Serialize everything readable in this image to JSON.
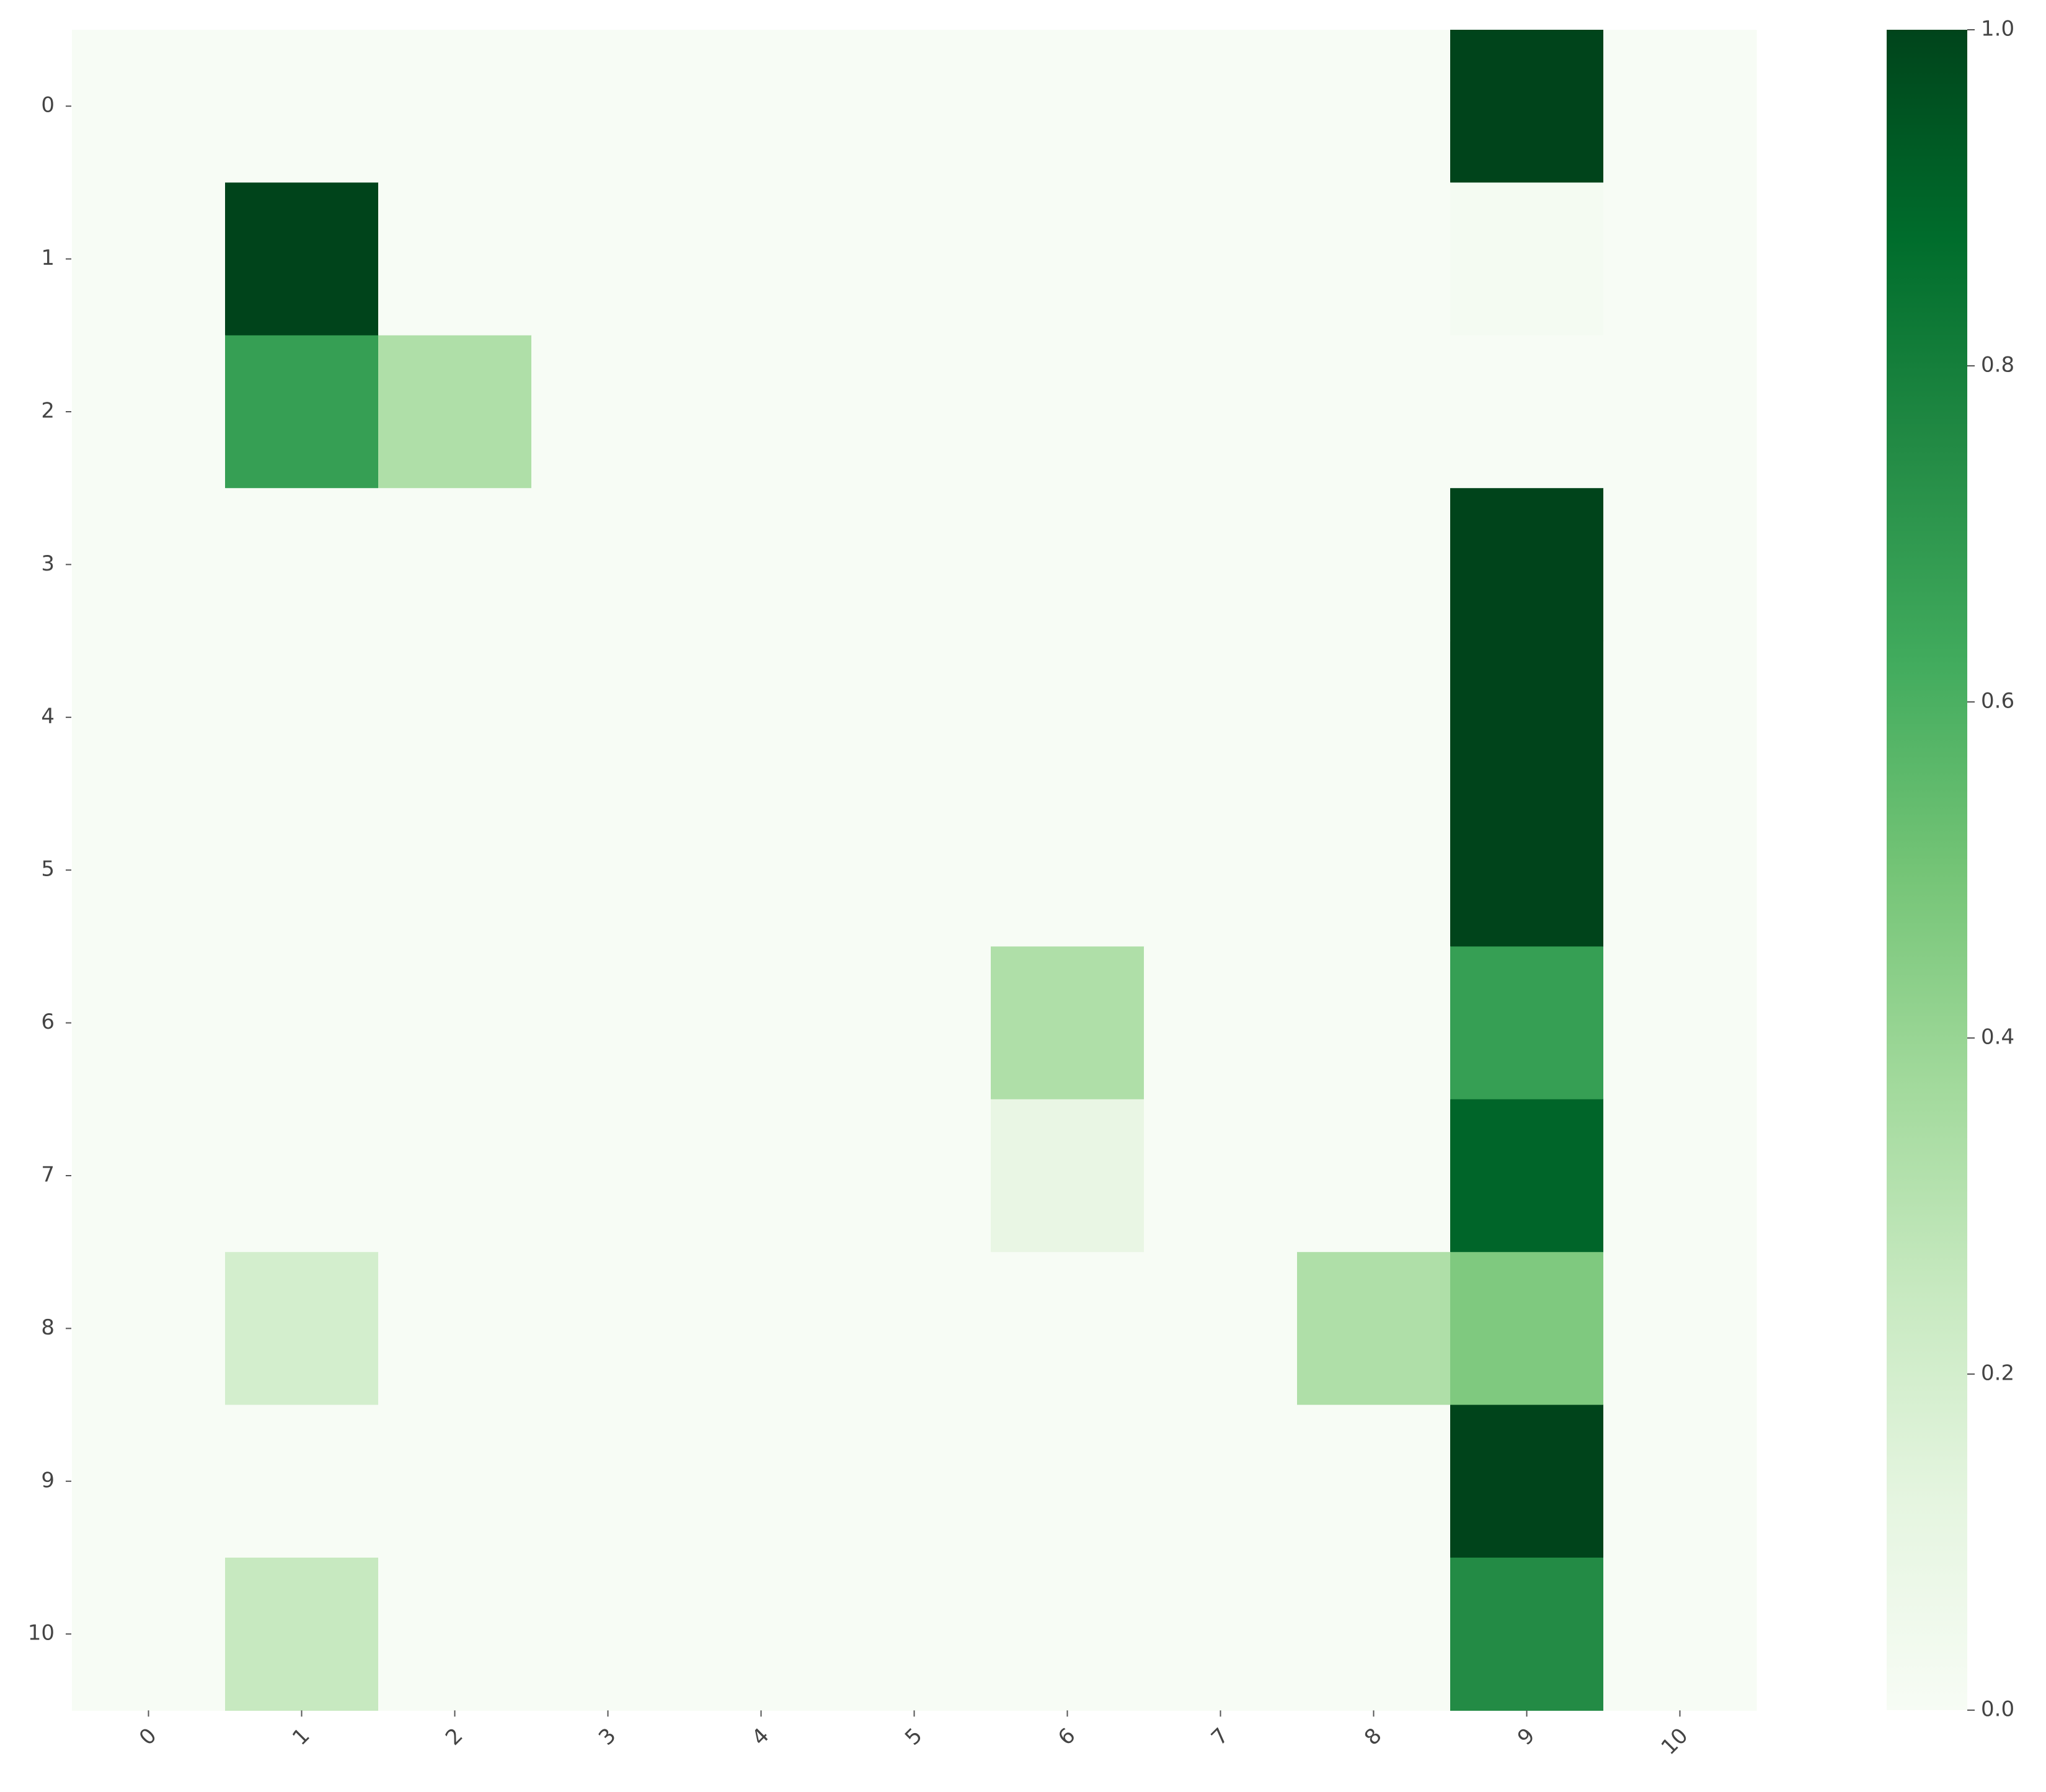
{
  "chart_data": {
    "type": "heatmap",
    "title": "",
    "xlabel": "",
    "ylabel": "",
    "x_categories": [
      "0",
      "1",
      "2",
      "3",
      "4",
      "5",
      "6",
      "7",
      "8",
      "9",
      "10"
    ],
    "y_categories": [
      "0",
      "1",
      "2",
      "3",
      "4",
      "5",
      "6",
      "7",
      "8",
      "9",
      "10"
    ],
    "values": [
      [
        0,
        0,
        0,
        0,
        0,
        0,
        0,
        0,
        0,
        1.0,
        0
      ],
      [
        0,
        1.0,
        0,
        0,
        0,
        0,
        0,
        0,
        0,
        0.02,
        0
      ],
      [
        0,
        0.67,
        0.33,
        0,
        0,
        0,
        0,
        0,
        0,
        0,
        0
      ],
      [
        0,
        0,
        0,
        0,
        0,
        0,
        0,
        0,
        0,
        1.0,
        0
      ],
      [
        0,
        0,
        0,
        0,
        0,
        0,
        0,
        0,
        0,
        1.0,
        0
      ],
      [
        0,
        0,
        0,
        0,
        0,
        0,
        0,
        0,
        0,
        1.0,
        0
      ],
      [
        0,
        0,
        0,
        0,
        0,
        0,
        0.33,
        0,
        0,
        0.67,
        0
      ],
      [
        0,
        0,
        0,
        0,
        0,
        0,
        0.1,
        0,
        0,
        0.9,
        0
      ],
      [
        0,
        0.2,
        0,
        0,
        0,
        0,
        0,
        0,
        0.33,
        0.47,
        0
      ],
      [
        0,
        0,
        0,
        0,
        0,
        0,
        0,
        0,
        0,
        1.0,
        0
      ],
      [
        0,
        0.25,
        0,
        0,
        0,
        0,
        0,
        0,
        0,
        0.75,
        0
      ]
    ],
    "colormap": "Greens",
    "vmin": 0.0,
    "vmax": 1.0,
    "colorbar": {
      "ticks": [
        0.0,
        0.2,
        0.4,
        0.6,
        0.8,
        1.0
      ],
      "tick_labels": [
        "0.0",
        "0.2",
        "0.4",
        "0.6",
        "0.8",
        "1.0"
      ]
    },
    "grid": false,
    "legend": "colorbar-right"
  }
}
